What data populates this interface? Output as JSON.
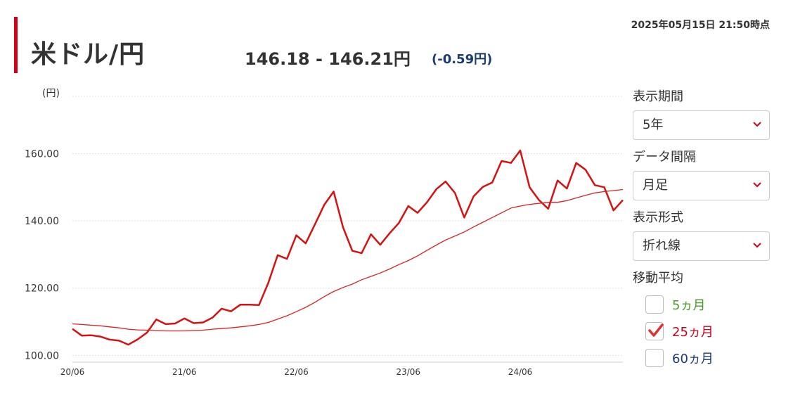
{
  "header": {
    "title": "米ドル/円",
    "rate": "146.18 - 146.21円",
    "change": "(-0.59円)",
    "timestamp": "2025年05月15日 21:50時点"
  },
  "controls": {
    "period_label": "表示期間",
    "period_value": "5年",
    "interval_label": "データ間隔",
    "interval_value": "月足",
    "format_label": "表示形式",
    "format_value": "折れ線",
    "ma_label": "移動平均",
    "ma_options": [
      {
        "label": "5ヵ月",
        "checked": false,
        "color": "#4a9a28"
      },
      {
        "label": "25ヵ月",
        "checked": true,
        "color": "#d0021b"
      },
      {
        "label": "60ヵ月",
        "checked": false,
        "color": "#1a3c6e"
      }
    ]
  },
  "chart_data": {
    "type": "line",
    "ylabel": "(円)",
    "ylim": [
      98,
      177
    ],
    "yticks": [
      100,
      120,
      140,
      160
    ],
    "ytick_labels": [
      "100.00",
      "120.00",
      "140.00",
      "160.00"
    ],
    "xtick_labels": [
      "20/06",
      "21/06",
      "22/06",
      "23/06",
      "24/06"
    ],
    "xtick_index": [
      0,
      12,
      24,
      36,
      48
    ],
    "x_count": 60,
    "grid": true,
    "colors": {
      "price": "#d81010",
      "ma": "#e02020",
      "grid": "#e0e0e0"
    },
    "series": [
      {
        "values": [
          107.9,
          105.9,
          106.0,
          105.6,
          104.7,
          104.4,
          103.2,
          104.8,
          106.8,
          110.7,
          109.3,
          109.5,
          111.0,
          109.6,
          109.8,
          111.2,
          113.9,
          113.1,
          115.1,
          115.1,
          115.0,
          121.6,
          129.8,
          128.7,
          135.7,
          133.3,
          139.0,
          144.8,
          148.7,
          138.1,
          131.1,
          130.4,
          136.0,
          132.9,
          136.3,
          139.4,
          144.4,
          142.4,
          145.5,
          149.4,
          151.7,
          148.3,
          141.0,
          147.3,
          150.1,
          151.4,
          157.8,
          157.2,
          160.9,
          150.0,
          146.2,
          143.6,
          152.0,
          149.6,
          157.2,
          155.2,
          150.6,
          150.0,
          143.1,
          146.2
        ]
      },
      {
        "values": [
          109.4,
          109.2,
          109.0,
          108.8,
          108.5,
          108.2,
          107.8,
          107.6,
          107.5,
          107.4,
          107.3,
          107.3,
          107.3,
          107.4,
          107.5,
          107.8,
          108.0,
          108.2,
          108.5,
          108.8,
          109.2,
          109.8,
          110.8,
          111.8,
          113.0,
          114.3,
          115.8,
          117.5,
          119.0,
          120.2,
          121.2,
          122.5,
          123.5,
          124.5,
          125.7,
          127.0,
          128.2,
          129.6,
          131.2,
          132.8,
          134.3,
          135.5,
          136.7,
          138.2,
          139.6,
          141.0,
          142.4,
          143.8,
          144.4,
          144.9,
          145.2,
          145.5,
          145.5,
          146.0,
          146.8,
          147.6,
          148.3,
          148.7,
          149.0,
          149.3
        ]
      }
    ]
  }
}
